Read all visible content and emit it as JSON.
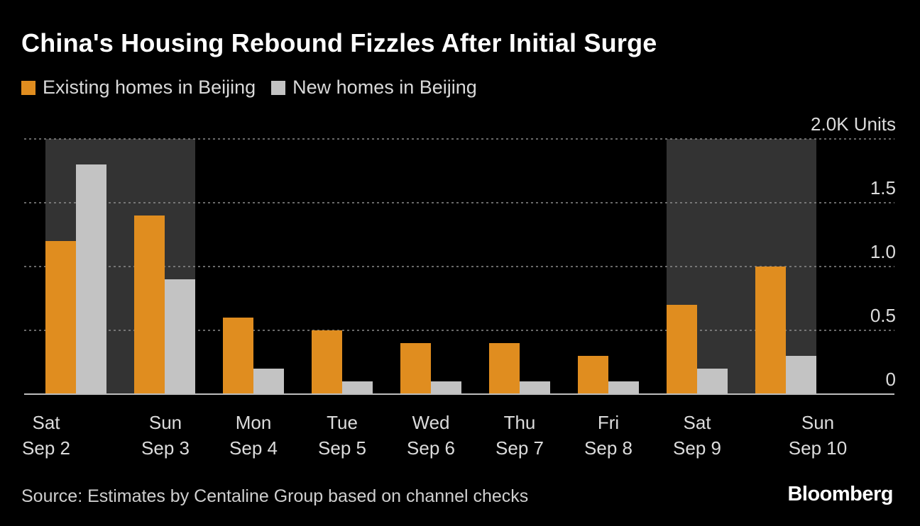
{
  "title": "China's Housing Rebound Fizzles After Initial Surge",
  "legend": [
    {
      "label": "Existing homes in Beijing",
      "color": "#e08d1f"
    },
    {
      "label": "New homes in Beijing",
      "color": "#c3c3c3"
    }
  ],
  "source": "Source: Estimates by Centaline Group based on channel checks",
  "brand": "Bloomberg",
  "colors": {
    "background": "#000000",
    "weekend_shading": "#333333",
    "grid": "#8c8c8c",
    "axis_text": "#dcdcdc"
  },
  "chart_data": {
    "type": "bar",
    "categories": [
      [
        "Sat",
        "Sep 2"
      ],
      [
        "Sun",
        "Sep 3"
      ],
      [
        "Mon",
        "Sep 4"
      ],
      [
        "Tue",
        "Sep 5"
      ],
      [
        "Wed",
        "Sep 6"
      ],
      [
        "Thu",
        "Sep 7"
      ],
      [
        "Fri",
        "Sep 8"
      ],
      [
        "Sat",
        "Sep 9"
      ],
      [
        "Sun",
        "Sep 10"
      ]
    ],
    "weekend_indices": [
      0,
      1,
      7,
      8
    ],
    "series": [
      {
        "name": "Existing homes in Beijing",
        "color": "#e08d1f",
        "values": [
          1.2,
          1.4,
          0.6,
          0.5,
          0.4,
          0.4,
          0.3,
          0.7,
          1.0
        ]
      },
      {
        "name": "New homes in Beijing",
        "color": "#c3c3c3",
        "values": [
          1.8,
          0.9,
          0.2,
          0.1,
          0.1,
          0.1,
          0.1,
          0.2,
          0.3
        ]
      }
    ],
    "ylim": [
      0,
      2.0
    ],
    "yticks": [
      0,
      0.5,
      1.0,
      1.5,
      2.0
    ],
    "ytick_labels": [
      "0",
      "0.5",
      "1.0",
      "1.5",
      "2.0K Units"
    ],
    "grid": true,
    "y_axis_position": "right"
  }
}
